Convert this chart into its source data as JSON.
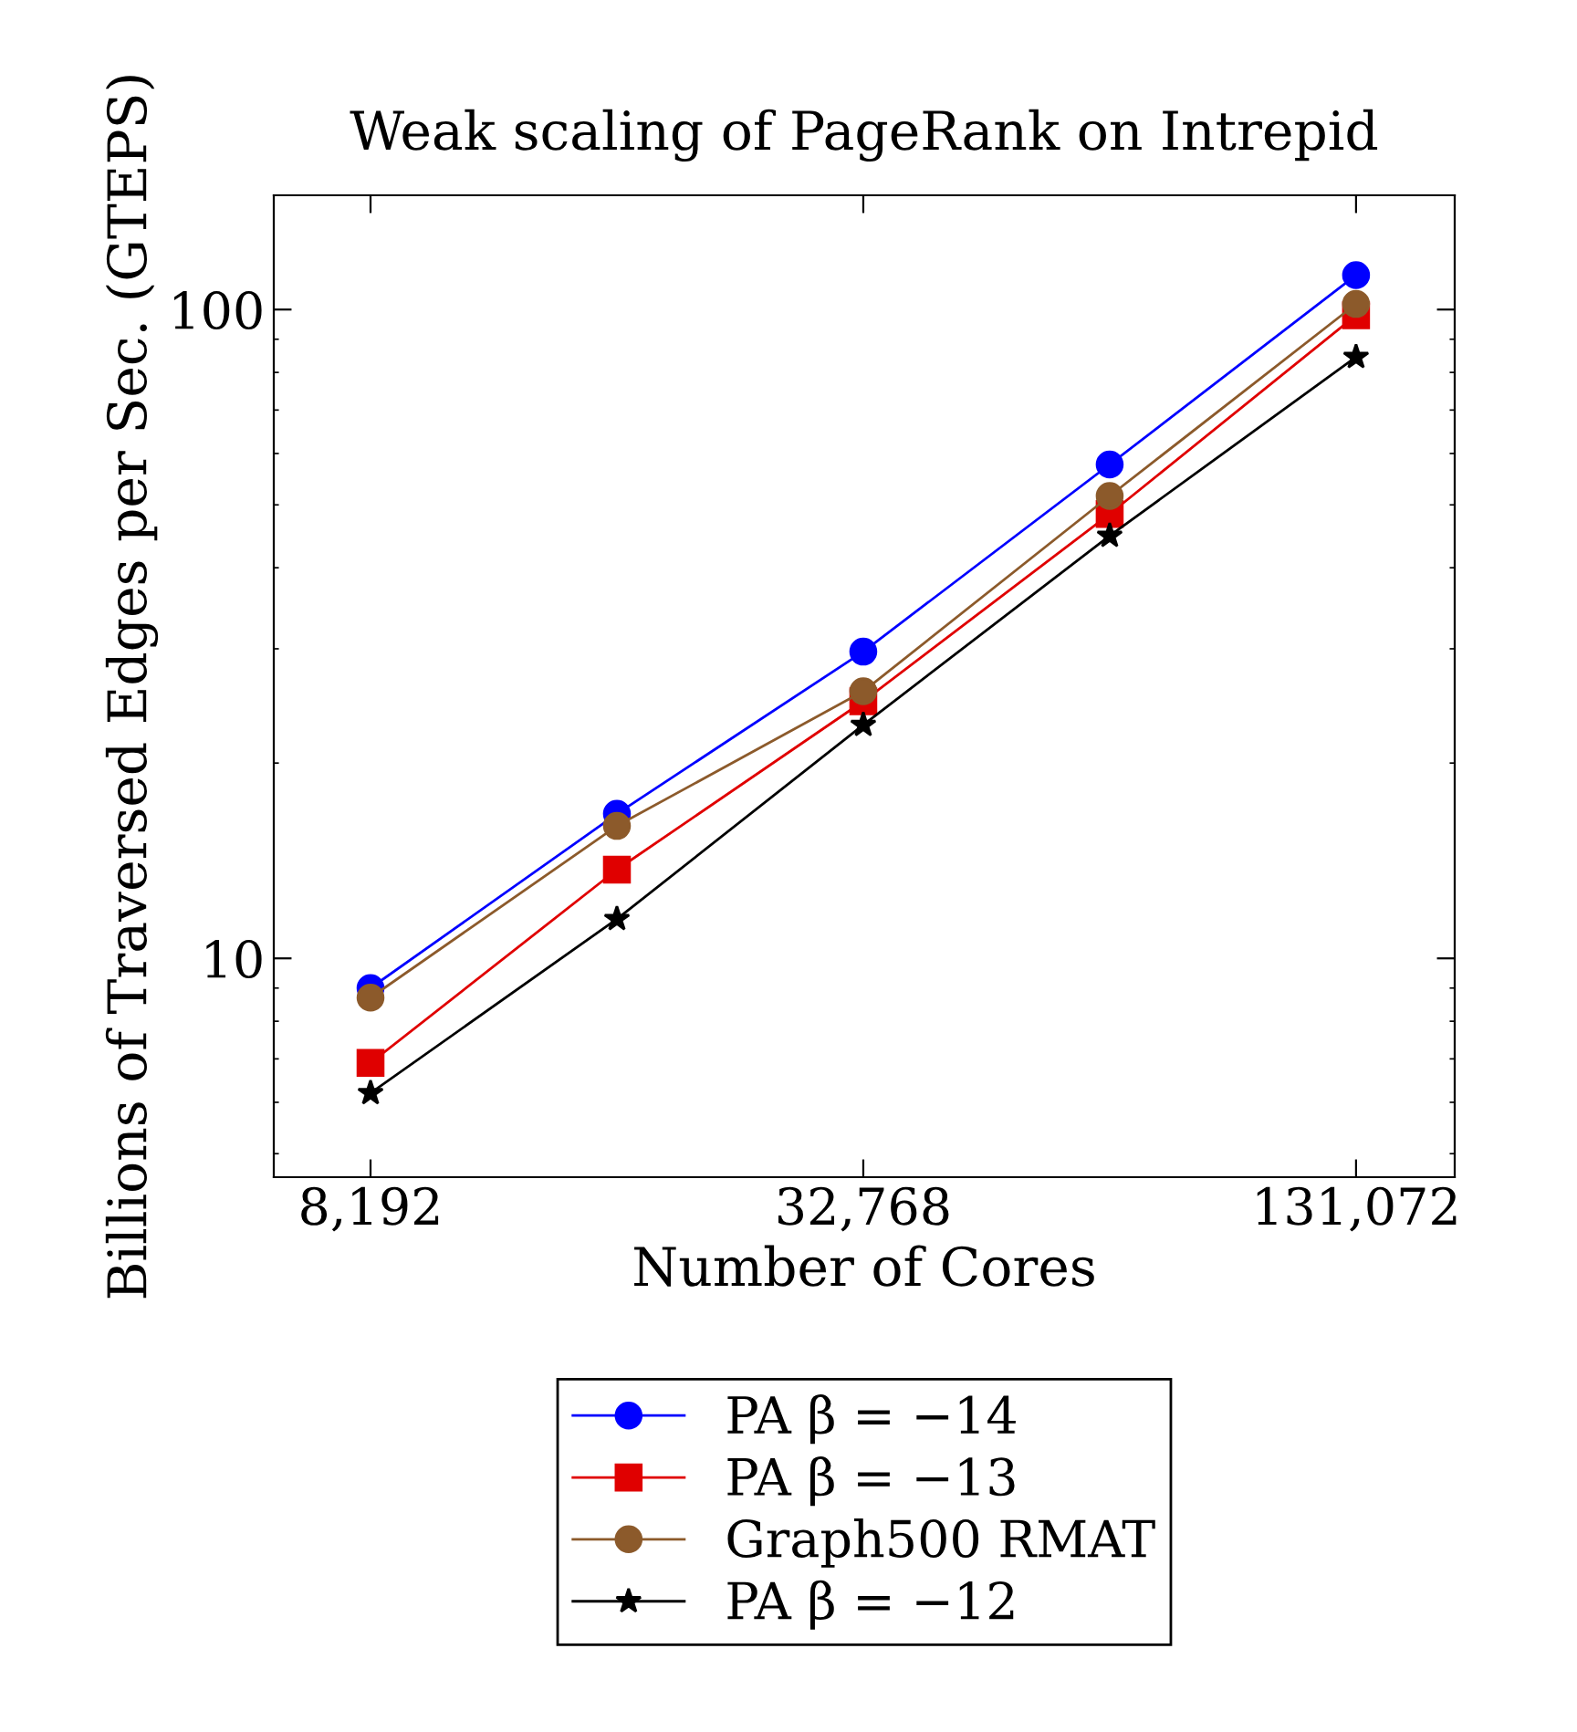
{
  "chart_data": {
    "type": "line",
    "title": "Weak scaling of PageRank on Intrepid",
    "xlabel": "Number of Cores",
    "ylabel": "Billions of Traversed Edges per Sec. (GTEPS)",
    "x": [
      8192,
      16384,
      32768,
      65536,
      131072
    ],
    "series": [
      {
        "name": "PA β = −14",
        "color": "#0000ff",
        "marker": "circle",
        "values": [
          9.0,
          16.7,
          29.7,
          57.7,
          113
        ]
      },
      {
        "name": "PA β = −13",
        "color": "#e00000",
        "marker": "square",
        "values": [
          6.9,
          13.7,
          24.9,
          48.4,
          98
        ]
      },
      {
        "name": "Graph500 RMAT",
        "color": "#8c5a2b",
        "marker": "circle",
        "values": [
          8.7,
          16.0,
          25.8,
          51.6,
          102
        ]
      },
      {
        "name": "PA β = −12",
        "color": "#000000",
        "marker": "star",
        "values": [
          6.2,
          11.5,
          22.9,
          44.8,
          84.5
        ]
      }
    ],
    "log": "xy",
    "xlim": [
      6240,
      173000
    ],
    "ylim": [
      4.6,
      150
    ],
    "xticks": [
      {
        "value": 8192,
        "label": "8,192"
      },
      {
        "value": 32768,
        "label": "32,768"
      },
      {
        "value": 131072,
        "label": "131,072"
      }
    ],
    "yticks": [
      10,
      100
    ],
    "grid": false,
    "legend": "bottom",
    "line_style": "solid"
  }
}
